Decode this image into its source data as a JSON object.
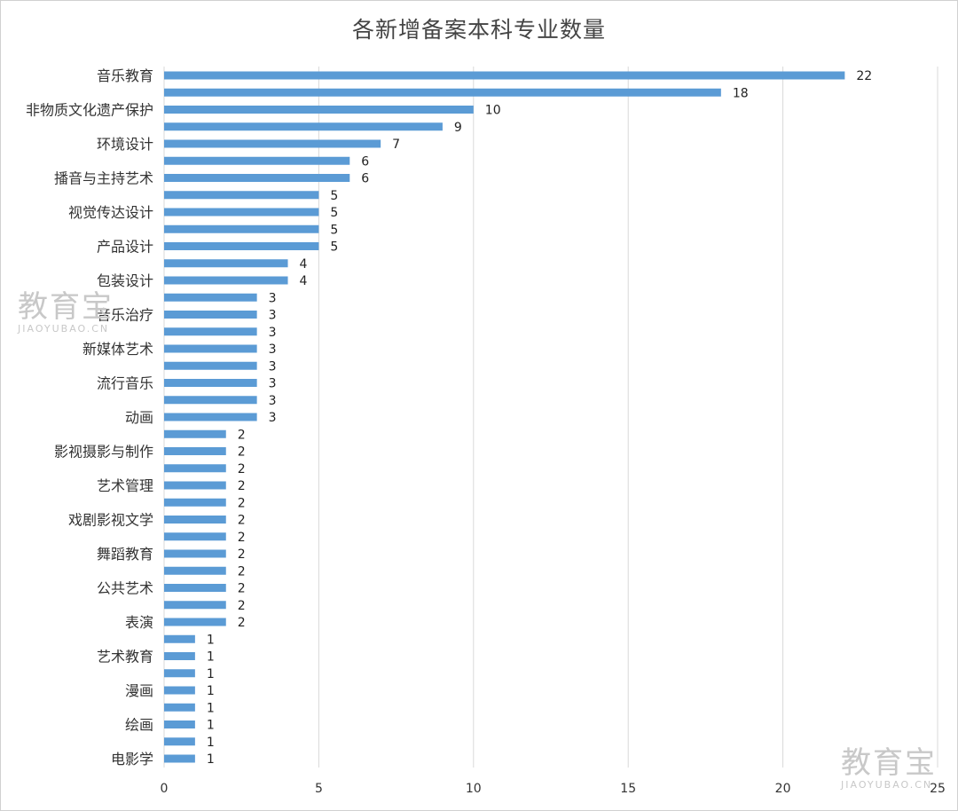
{
  "chart_data": {
    "type": "bar",
    "orientation": "horizontal",
    "title": "各新增备案本科专业数量",
    "categories": [
      "音乐教育",
      "",
      "非物质文化遗产保护",
      "",
      "环境设计",
      "",
      "播音与主持艺术",
      "",
      "视觉传达设计",
      "",
      "产品设计",
      "",
      "包装设计",
      "",
      "音乐治疗",
      "",
      "新媒体艺术",
      "",
      "流行音乐",
      "",
      "动画",
      "",
      "影视摄影与制作",
      "",
      "艺术管理",
      "",
      "戏剧影视文学",
      "",
      "舞蹈教育",
      "",
      "公共艺术",
      "",
      "表演",
      "",
      "艺术教育",
      "",
      "漫画",
      "",
      "绘画",
      "",
      "电影学"
    ],
    "values": [
      22,
      18,
      10,
      9,
      7,
      6,
      6,
      5,
      5,
      5,
      5,
      4,
      4,
      3,
      3,
      3,
      3,
      3,
      3,
      3,
      3,
      2,
      2,
      2,
      2,
      2,
      2,
      2,
      2,
      2,
      2,
      2,
      2,
      1,
      1,
      1,
      1,
      1,
      1,
      1,
      1
    ],
    "xlim": [
      0,
      25
    ],
    "xticks": [
      "0",
      "5",
      "10",
      "15",
      "20",
      "25"
    ],
    "grid": true,
    "bar_color": "#5b9bd5",
    "xlabel": "",
    "ylabel": ""
  },
  "watermarks": [
    {
      "text": "教育宝",
      "sub": "JIAOYUBAO.CN"
    },
    {
      "text": "教育宝",
      "sub": "JIAOYUBAO.CN"
    }
  ]
}
